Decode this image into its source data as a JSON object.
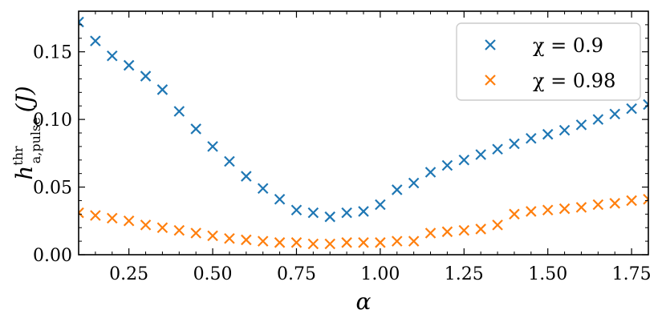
{
  "chart_data": {
    "type": "scatter",
    "xlabel": "α",
    "ylabel": {
      "main": "h",
      "superscript": "thr",
      "subscript": "a,pulse",
      "unit": "(J)"
    },
    "xlim": [
      0.1,
      1.8
    ],
    "ylim": [
      0.0,
      0.18
    ],
    "xticks": [
      "0.25",
      "0.50",
      "0.75",
      "1.00",
      "1.25",
      "1.50",
      "1.75"
    ],
    "xtick_values": [
      0.25,
      0.5,
      0.75,
      1.0,
      1.25,
      1.5,
      1.75
    ],
    "yticks": [
      "0.00",
      "0.05",
      "0.10",
      "0.15"
    ],
    "ytick_values": [
      0.0,
      0.05,
      0.1,
      0.15
    ],
    "grid": false,
    "legend_position": "top-right",
    "marker": "x",
    "series": [
      {
        "name": "χ = 0.9",
        "color": "#1f77b4",
        "x": [
          0.1,
          0.15,
          0.2,
          0.25,
          0.3,
          0.35,
          0.4,
          0.45,
          0.5,
          0.55,
          0.6,
          0.65,
          0.7,
          0.75,
          0.8,
          0.85,
          0.9,
          0.95,
          1.0,
          1.05,
          1.1,
          1.15,
          1.2,
          1.25,
          1.3,
          1.35,
          1.4,
          1.45,
          1.5,
          1.55,
          1.6,
          1.65,
          1.7,
          1.75,
          1.8
        ],
        "y": [
          0.172,
          0.158,
          0.147,
          0.14,
          0.132,
          0.122,
          0.106,
          0.093,
          0.08,
          0.069,
          0.058,
          0.049,
          0.041,
          0.033,
          0.031,
          0.028,
          0.031,
          0.032,
          0.037,
          0.048,
          0.053,
          0.061,
          0.066,
          0.07,
          0.074,
          0.078,
          0.082,
          0.086,
          0.089,
          0.092,
          0.096,
          0.1,
          0.104,
          0.108,
          0.111
        ]
      },
      {
        "name": "χ = 0.98",
        "color": "#ff7f0e",
        "x": [
          0.1,
          0.15,
          0.2,
          0.25,
          0.3,
          0.35,
          0.4,
          0.45,
          0.5,
          0.55,
          0.6,
          0.65,
          0.7,
          0.75,
          0.8,
          0.85,
          0.9,
          0.95,
          1.0,
          1.05,
          1.1,
          1.15,
          1.2,
          1.25,
          1.3,
          1.35,
          1.4,
          1.45,
          1.5,
          1.55,
          1.6,
          1.65,
          1.7,
          1.75,
          1.8
        ],
        "y": [
          0.031,
          0.029,
          0.027,
          0.025,
          0.022,
          0.02,
          0.018,
          0.016,
          0.014,
          0.012,
          0.011,
          0.01,
          0.009,
          0.009,
          0.008,
          0.008,
          0.009,
          0.009,
          0.009,
          0.01,
          0.01,
          0.016,
          0.017,
          0.018,
          0.019,
          0.022,
          0.03,
          0.032,
          0.033,
          0.034,
          0.035,
          0.037,
          0.038,
          0.04,
          0.041
        ]
      }
    ]
  }
}
